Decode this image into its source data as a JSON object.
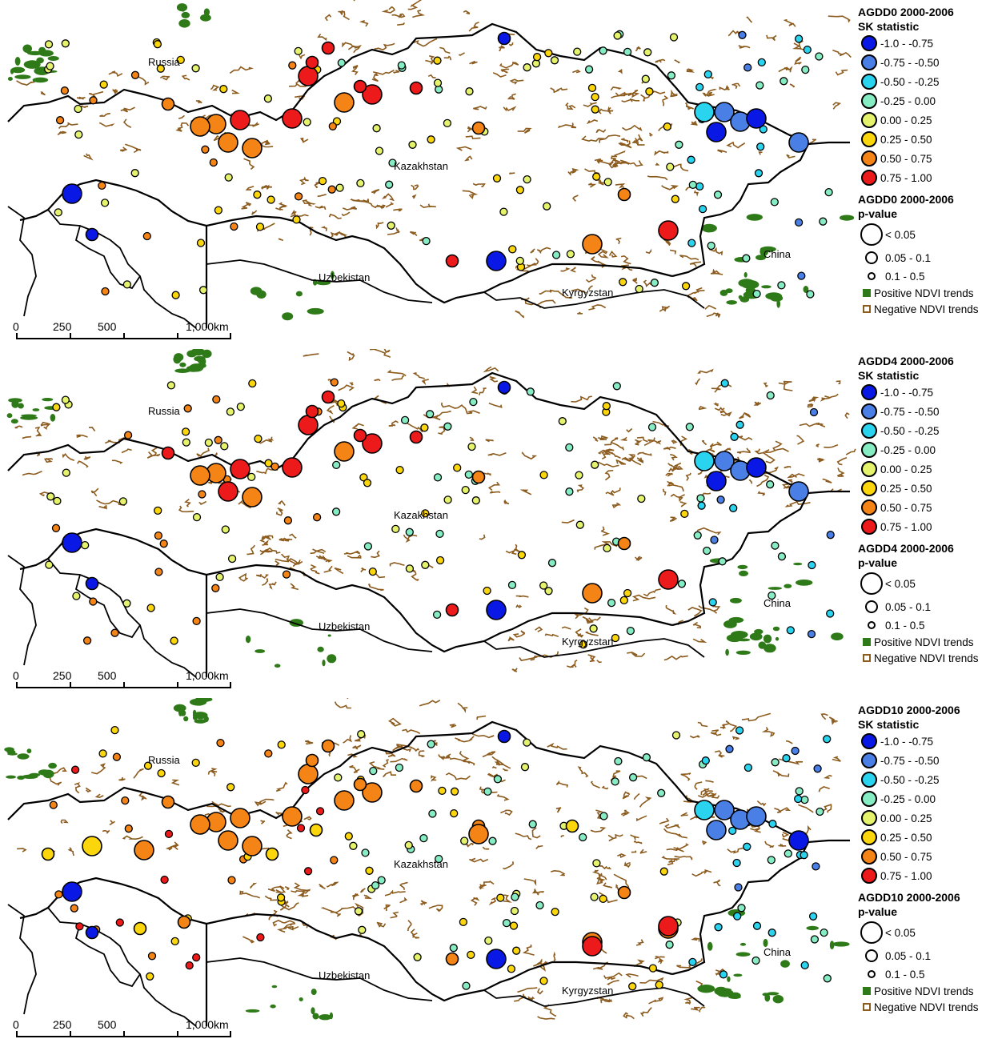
{
  "colors": {
    "class_colors": [
      "#0a18e6",
      "#4a7fe6",
      "#2ad3ee",
      "#86ecc3",
      "#e5f26b",
      "#fcd60d",
      "#f58416",
      "#ec1a1a"
    ],
    "negative_ndvi": "#8c5b1e",
    "positive_ndvi": "#2f7a18",
    "border": "#000000"
  },
  "map_labels": {
    "russia": "Russia",
    "kazakhstan": "Kazakhstan",
    "uzbekistan": "Uzbekistan",
    "kyrgyzstan": "Kyrgyzstan",
    "china": "China"
  },
  "scale_bar": {
    "labels": [
      "0",
      "250",
      "500",
      "1,000km"
    ]
  },
  "legend": {
    "sk_classes": [
      "-1.0 - -0.75",
      "-0.75 - -0.50",
      "-0.50 - -0.25",
      "-0.25 - 0.00",
      "0.00 - 0.25",
      "0.25 - 0.50",
      "0.50 - 0.75",
      "0.75 - 1.00"
    ],
    "pvalue_classes": [
      "< 0.05",
      "0.05 - 0.1",
      "0.1 - 0.5"
    ],
    "positive_ndvi": "Positive NDVI trends",
    "negative_ndvi": "Negative NDVI trends"
  },
  "panels": [
    {
      "id": "agdd0",
      "sk_title": "AGDD0 2000-2006",
      "sk_subtitle": "SK statistic",
      "pv_title": "AGDD0 2000-2006",
      "pv_subtitle": "p-value"
    },
    {
      "id": "agdd4",
      "sk_title": "AGDD4 2000-2006",
      "sk_subtitle": "SK statistic",
      "pv_title": "AGDD4 2000-2006",
      "pv_subtitle": "p-value"
    },
    {
      "id": "agdd10",
      "sk_title": "AGDD10 2000-2006",
      "sk_subtitle": "SK statistic",
      "pv_title": "AGDD10 2000-2006",
      "pv_subtitle": "p-value"
    }
  ]
}
